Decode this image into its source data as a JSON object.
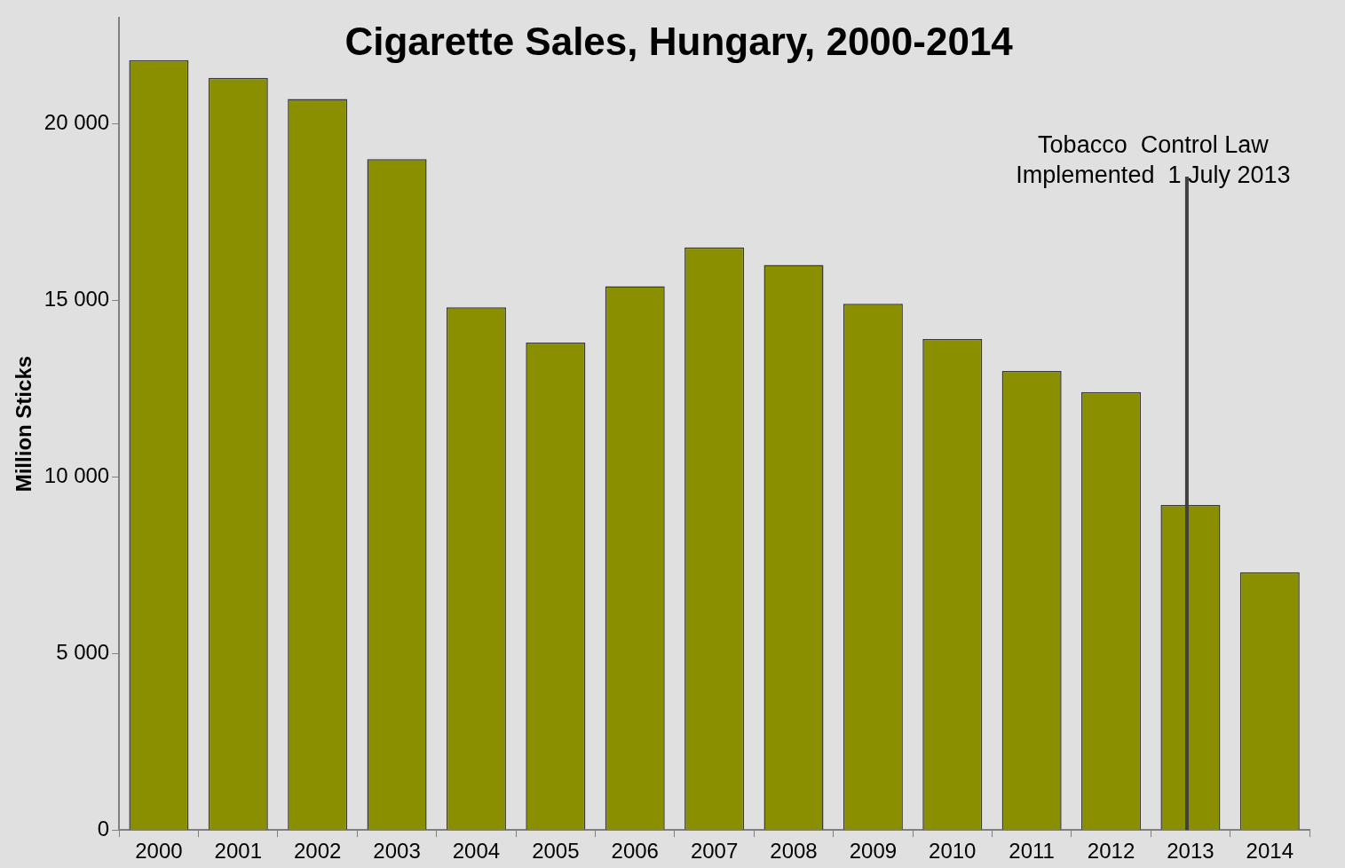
{
  "chart_data": {
    "type": "bar",
    "title": "Cigarette Sales, Hungary, 2000-2014",
    "ylabel": "Million Sticks",
    "categories": [
      "2000",
      "2001",
      "2002",
      "2003",
      "2004",
      "2005",
      "2006",
      "2007",
      "2008",
      "2009",
      "2010",
      "2011",
      "2012",
      "2013",
      "2014"
    ],
    "values": [
      21800,
      21300,
      20700,
      19000,
      14800,
      13800,
      15400,
      16500,
      16000,
      14900,
      13900,
      13000,
      12400,
      9200,
      7300
    ],
    "color": "#8a8f00",
    "ylim": [
      0,
      23000
    ],
    "yticks": [
      {
        "value": 0,
        "label": "0"
      },
      {
        "value": 5000,
        "label": "5 000"
      },
      {
        "value": 10000,
        "label": "10 000"
      },
      {
        "value": 15000,
        "label": "15 000"
      },
      {
        "value": 20000,
        "label": "20 000"
      }
    ],
    "grid": false,
    "legend": false,
    "ref_lines": [
      {
        "axis": "x",
        "value": "2013",
        "label": "Tobacco  Control Law\nImplemented  1 July 2013",
        "color": "#404040"
      }
    ]
  }
}
